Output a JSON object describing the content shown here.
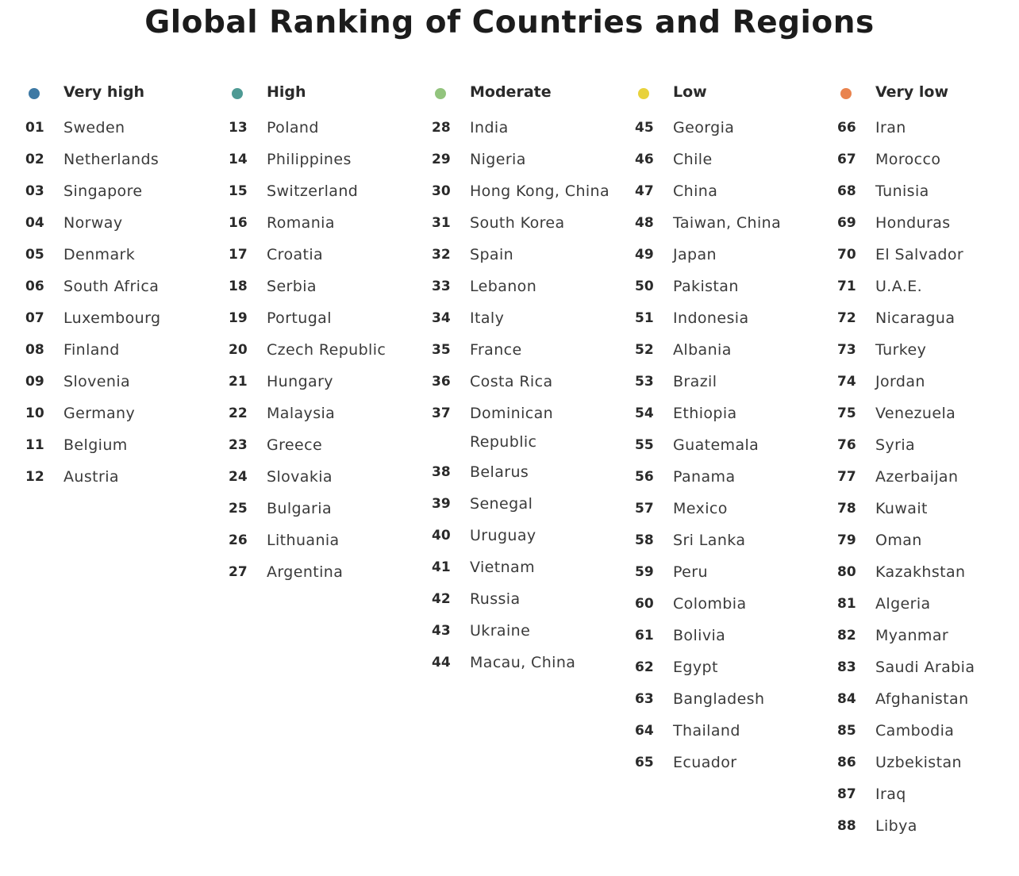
{
  "title": "Global Ranking of Countries and Regions",
  "categories": [
    {
      "label": "Very high",
      "color": "#3d79a4",
      "items": [
        {
          "rank": "01",
          "name": "Sweden"
        },
        {
          "rank": "02",
          "name": "Netherlands"
        },
        {
          "rank": "03",
          "name": "Singapore"
        },
        {
          "rank": "04",
          "name": "Norway"
        },
        {
          "rank": "05",
          "name": "Denmark"
        },
        {
          "rank": "06",
          "name": "South Africa"
        },
        {
          "rank": "07",
          "name": "Luxembourg"
        },
        {
          "rank": "08",
          "name": "Finland"
        },
        {
          "rank": "09",
          "name": "Slovenia"
        },
        {
          "rank": "10",
          "name": "Germany"
        },
        {
          "rank": "11",
          "name": "Belgium"
        },
        {
          "rank": "12",
          "name": "Austria"
        }
      ]
    },
    {
      "label": "High",
      "color": "#4e9a94",
      "items": [
        {
          "rank": "13",
          "name": "Poland"
        },
        {
          "rank": "14",
          "name": "Philippines"
        },
        {
          "rank": "15",
          "name": "Switzerland"
        },
        {
          "rank": "16",
          "name": "Romania"
        },
        {
          "rank": "17",
          "name": "Croatia"
        },
        {
          "rank": "18",
          "name": "Serbia"
        },
        {
          "rank": "19",
          "name": "Portugal"
        },
        {
          "rank": "20",
          "name": "Czech Republic"
        },
        {
          "rank": "21",
          "name": "Hungary"
        },
        {
          "rank": "22",
          "name": "Malaysia"
        },
        {
          "rank": "23",
          "name": "Greece"
        },
        {
          "rank": "24",
          "name": "Slovakia"
        },
        {
          "rank": "25",
          "name": "Bulgaria"
        },
        {
          "rank": "26",
          "name": "Lithuania"
        },
        {
          "rank": "27",
          "name": "Argentina"
        }
      ]
    },
    {
      "label": "Moderate",
      "color": "#92c47d",
      "items": [
        {
          "rank": "28",
          "name": "India"
        },
        {
          "rank": "29",
          "name": "Nigeria"
        },
        {
          "rank": "30",
          "name": "Hong Kong, China"
        },
        {
          "rank": "31",
          "name": "South Korea"
        },
        {
          "rank": "32",
          "name": "Spain"
        },
        {
          "rank": "33",
          "name": "Lebanon"
        },
        {
          "rank": "34",
          "name": "Italy"
        },
        {
          "rank": "35",
          "name": "France"
        },
        {
          "rank": "36",
          "name": "Costa Rica"
        },
        {
          "rank": "37",
          "name": "Dominican Republic"
        },
        {
          "rank": "38",
          "name": "Belarus"
        },
        {
          "rank": "39",
          "name": "Senegal"
        },
        {
          "rank": "40",
          "name": "Uruguay"
        },
        {
          "rank": "41",
          "name": "Vietnam"
        },
        {
          "rank": "42",
          "name": "Russia"
        },
        {
          "rank": "43",
          "name": "Ukraine"
        },
        {
          "rank": "44",
          "name": "Macau, China"
        }
      ]
    },
    {
      "label": "Low",
      "color": "#e8d23c",
      "items": [
        {
          "rank": "45",
          "name": "Georgia"
        },
        {
          "rank": "46",
          "name": "Chile"
        },
        {
          "rank": "47",
          "name": "China"
        },
        {
          "rank": "48",
          "name": "Taiwan, China"
        },
        {
          "rank": "49",
          "name": "Japan"
        },
        {
          "rank": "50",
          "name": "Pakistan"
        },
        {
          "rank": "51",
          "name": "Indonesia"
        },
        {
          "rank": "52",
          "name": "Albania"
        },
        {
          "rank": "53",
          "name": "Brazil"
        },
        {
          "rank": "54",
          "name": "Ethiopia"
        },
        {
          "rank": "55",
          "name": "Guatemala"
        },
        {
          "rank": "56",
          "name": "Panama"
        },
        {
          "rank": "57",
          "name": "Mexico"
        },
        {
          "rank": "58",
          "name": "Sri Lanka"
        },
        {
          "rank": "59",
          "name": "Peru"
        },
        {
          "rank": "60",
          "name": "Colombia"
        },
        {
          "rank": "61",
          "name": "Bolivia"
        },
        {
          "rank": "62",
          "name": "Egypt"
        },
        {
          "rank": "63",
          "name": "Bangladesh"
        },
        {
          "rank": "64",
          "name": "Thailand"
        },
        {
          "rank": "65",
          "name": "Ecuador"
        }
      ]
    },
    {
      "label": "Very low",
      "color": "#e9834e",
      "items": [
        {
          "rank": "66",
          "name": "Iran"
        },
        {
          "rank": "67",
          "name": "Morocco"
        },
        {
          "rank": "68",
          "name": "Tunisia"
        },
        {
          "rank": "69",
          "name": "Honduras"
        },
        {
          "rank": "70",
          "name": "El Salvador"
        },
        {
          "rank": "71",
          "name": "U.A.E."
        },
        {
          "rank": "72",
          "name": "Nicaragua"
        },
        {
          "rank": "73",
          "name": "Turkey"
        },
        {
          "rank": "74",
          "name": "Jordan"
        },
        {
          "rank": "75",
          "name": "Venezuela"
        },
        {
          "rank": "76",
          "name": "Syria"
        },
        {
          "rank": "77",
          "name": "Azerbaijan"
        },
        {
          "rank": "78",
          "name": "Kuwait"
        },
        {
          "rank": "79",
          "name": "Oman"
        },
        {
          "rank": "80",
          "name": "Kazakhstan"
        },
        {
          "rank": "81",
          "name": "Algeria"
        },
        {
          "rank": "82",
          "name": "Myanmar"
        },
        {
          "rank": "83",
          "name": "Saudi Arabia"
        },
        {
          "rank": "84",
          "name": "Afghanistan"
        },
        {
          "rank": "85",
          "name": "Cambodia"
        },
        {
          "rank": "86",
          "name": "Uzbekistan"
        },
        {
          "rank": "87",
          "name": "Iraq"
        },
        {
          "rank": "88",
          "name": "Libya"
        }
      ]
    }
  ]
}
